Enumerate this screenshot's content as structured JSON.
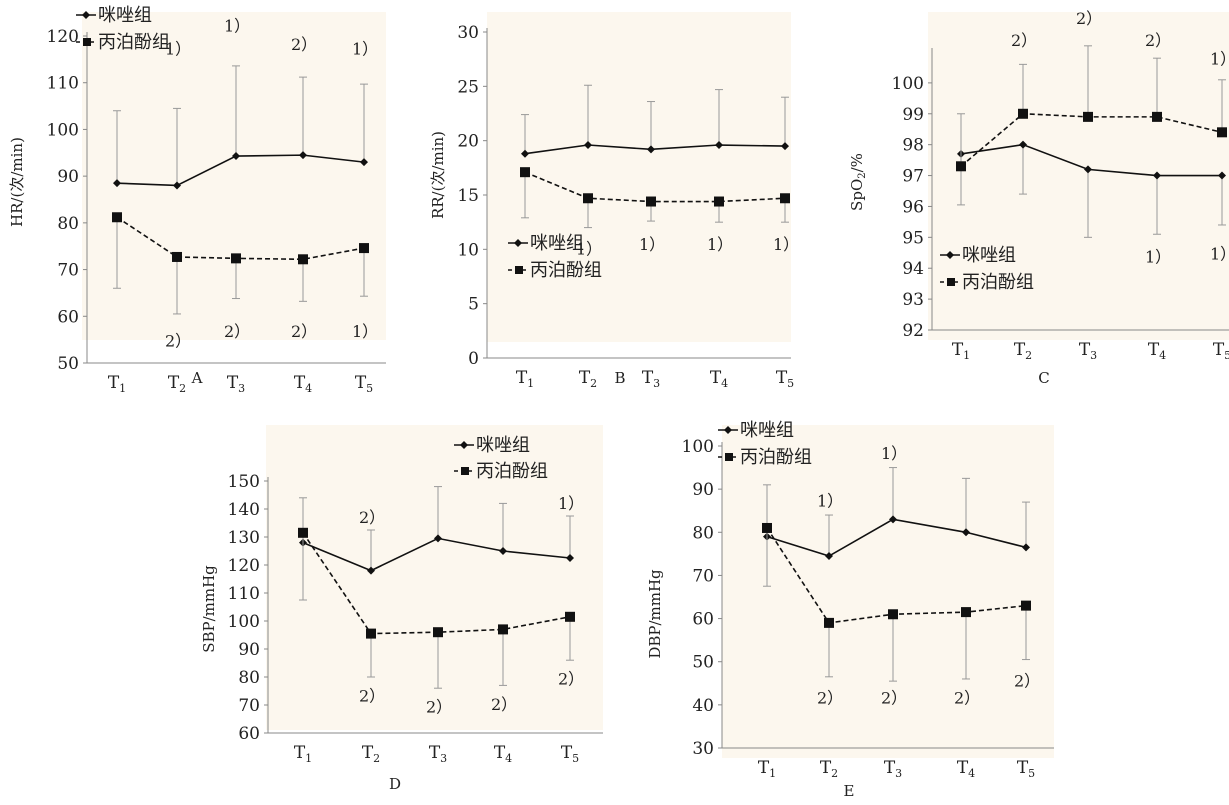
{
  "charts": [
    {
      "panel": "A",
      "type": "line",
      "ylabel": "HR/(次/min)",
      "ylim": [
        50,
        120
      ],
      "yticks": [
        50,
        60,
        70,
        80,
        90,
        100,
        110,
        120
      ],
      "categories": [
        "T1",
        "T2",
        "T3",
        "T4",
        "T5"
      ],
      "legend_position": "top-left",
      "series": [
        {
          "name": "咪唑组",
          "style": "solid-diamond",
          "values": [
            88.5,
            88.0,
            94.3,
            94.5,
            93.0
          ],
          "err_up": [
            15.5,
            16.5,
            19.3,
            16.7,
            16.7
          ],
          "err_down": [
            0,
            0,
            0,
            0,
            0
          ]
        },
        {
          "name": "丙泊酚组",
          "style": "dashed-square",
          "values": [
            81.2,
            72.7,
            72.4,
            72.2,
            74.6
          ],
          "err_up": [
            0,
            0,
            0,
            0,
            0
          ],
          "err_down": [
            15.2,
            12.2,
            8.6,
            9.0,
            10.3
          ]
        }
      ],
      "annotations": [
        {
          "text": "1）",
          "x": 1,
          "y": 116,
          "baseline": "top"
        },
        {
          "text": "1）",
          "x": 2,
          "y": 121,
          "baseline": "top"
        },
        {
          "text": "2）",
          "x": 3,
          "y": 117,
          "baseline": "top"
        },
        {
          "text": "1）",
          "x": 4,
          "y": 116,
          "baseline": "top"
        },
        {
          "text": "2）",
          "x": 1,
          "y": 57,
          "baseline": "bottom"
        },
        {
          "text": "2）",
          "x": 2,
          "y": 59,
          "baseline": "bottom"
        },
        {
          "text": "2）",
          "x": 3,
          "y": 59,
          "baseline": "bottom"
        },
        {
          "text": "1）",
          "x": 4,
          "y": 59,
          "baseline": "bottom"
        }
      ]
    },
    {
      "panel": "B",
      "type": "line",
      "ylabel": "RR/(次/min)",
      "ylim": [
        0,
        30
      ],
      "yticks": [
        0,
        5,
        10,
        15,
        20,
        25,
        30
      ],
      "categories": [
        "T1",
        "T2",
        "T3",
        "T4",
        "T5"
      ],
      "legend_position": "middle-left",
      "series": [
        {
          "name": "咪唑组",
          "style": "solid-diamond",
          "values": [
            18.8,
            19.6,
            19.2,
            19.6,
            19.5
          ],
          "err_up": [
            3.6,
            5.5,
            4.4,
            5.1,
            4.5
          ],
          "err_down": [
            0,
            0,
            0,
            0,
            0
          ]
        },
        {
          "name": "丙泊酚组",
          "style": "dashed-square",
          "values": [
            17.1,
            14.7,
            14.4,
            14.4,
            14.7
          ],
          "err_up": [
            0,
            0,
            0,
            0,
            0
          ],
          "err_down": [
            4.2,
            2.7,
            1.8,
            1.9,
            2.2
          ]
        }
      ],
      "annotations": [
        {
          "text": "1）",
          "x": 1,
          "y": 11.0,
          "baseline": "bottom"
        },
        {
          "text": "1）",
          "x": 2,
          "y": 11.4,
          "baseline": "bottom"
        },
        {
          "text": "1）",
          "x": 3,
          "y": 11.4,
          "baseline": "bottom"
        },
        {
          "text": "1）",
          "x": 4,
          "y": 11.4,
          "baseline": "bottom"
        }
      ]
    },
    {
      "panel": "C",
      "type": "line",
      "ylabel": "SpO2/%",
      "ylim": [
        92,
        101
      ],
      "yticks": [
        92,
        93,
        94,
        95,
        96,
        97,
        98,
        99,
        100
      ],
      "categories": [
        "T1",
        "T2",
        "T3",
        "T4",
        "T5"
      ],
      "legend_position": "bottom-left",
      "series": [
        {
          "name": "咪唑组",
          "style": "solid-diamond",
          "values": [
            97.7,
            98.0,
            97.2,
            97.0,
            97.0
          ],
          "err_up": [
            0,
            0,
            0,
            0,
            0
          ],
          "err_down": [
            1.65,
            1.6,
            2.2,
            1.9,
            1.6
          ]
        },
        {
          "name": "丙泊酚组",
          "style": "dashed-square",
          "values": [
            97.3,
            99.0,
            98.9,
            98.9,
            98.4
          ],
          "err_up": [
            1.7,
            1.6,
            2.3,
            1.9,
            1.7
          ],
          "err_down": [
            0,
            0,
            0,
            0,
            0
          ]
        }
      ],
      "annotations": [
        {
          "text": "2）",
          "x": 1,
          "y": 101.2,
          "baseline": "top"
        },
        {
          "text": "2）",
          "x": 2,
          "y": 101.9,
          "baseline": "top"
        },
        {
          "text": "2）",
          "x": 3,
          "y": 101.2,
          "baseline": "top"
        },
        {
          "text": "1）",
          "x": 4,
          "y": 100.6,
          "baseline": "top"
        },
        {
          "text": "1）",
          "x": 3,
          "y": 94.7,
          "baseline": "bottom"
        },
        {
          "text": "1）",
          "x": 4,
          "y": 94.8,
          "baseline": "bottom"
        }
      ]
    },
    {
      "panel": "D",
      "type": "line",
      "ylabel": "SBP/mmHg",
      "ylim": [
        60,
        150
      ],
      "yticks": [
        60,
        70,
        80,
        90,
        100,
        110,
        120,
        130,
        140,
        150
      ],
      "categories": [
        "T1",
        "T2",
        "T3",
        "T4",
        "T5"
      ],
      "legend_position": "top-right",
      "series": [
        {
          "name": "咪唑组",
          "style": "solid-diamond",
          "values": [
            128,
            118,
            129.5,
            125,
            122.5
          ],
          "err_up": [
            16,
            14.5,
            18.5,
            17,
            15
          ],
          "err_down": [
            0,
            0,
            0,
            0,
            0
          ]
        },
        {
          "name": "丙泊酚组",
          "style": "dashed-square",
          "values": [
            131.5,
            95.5,
            96,
            97,
            101.5
          ],
          "err_up": [
            0,
            0,
            0,
            0,
            0
          ],
          "err_down": [
            24,
            15.5,
            20,
            20,
            15.5
          ]
        }
      ],
      "annotations": [
        {
          "text": "2）",
          "x": 1,
          "y": 135,
          "baseline": "top"
        },
        {
          "text": "1）",
          "x": 4,
          "y": 140,
          "baseline": "top"
        },
        {
          "text": "2）",
          "x": 1,
          "y": 77,
          "baseline": "bottom"
        },
        {
          "text": "2）",
          "x": 2,
          "y": 73,
          "baseline": "bottom"
        },
        {
          "text": "2）",
          "x": 3,
          "y": 74,
          "baseline": "bottom"
        },
        {
          "text": "2）",
          "x": 4,
          "y": 83,
          "baseline": "bottom"
        }
      ]
    },
    {
      "panel": "E",
      "type": "line",
      "ylabel": "DBP/mmHg",
      "ylim": [
        30,
        100
      ],
      "yticks": [
        30,
        40,
        50,
        60,
        70,
        80,
        90,
        100
      ],
      "categories": [
        "T1",
        "T2",
        "T3",
        "T4",
        "T5"
      ],
      "legend_position": "top-left",
      "series": [
        {
          "name": "咪唑组",
          "style": "solid-diamond",
          "values": [
            79,
            74.5,
            83,
            80,
            76.5
          ],
          "err_up": [
            12,
            9.5,
            12,
            12.5,
            10.5
          ],
          "err_down": [
            0,
            0,
            0,
            0,
            0
          ]
        },
        {
          "name": "丙泊酚组",
          "style": "dashed-square",
          "values": [
            81,
            59,
            61,
            61.5,
            63
          ],
          "err_up": [
            0,
            0,
            0,
            0,
            0
          ],
          "err_down": [
            13.5,
            12.5,
            15.5,
            15.5,
            12.5
          ]
        }
      ],
      "annotations": [
        {
          "text": "1）",
          "x": 1,
          "y": 86,
          "baseline": "top"
        },
        {
          "text": "1）",
          "x": 2,
          "y": 97,
          "baseline": "top"
        },
        {
          "text": "2）",
          "x": 1,
          "y": 44,
          "baseline": "bottom"
        },
        {
          "text": "2）",
          "x": 2,
          "y": 44,
          "baseline": "bottom"
        },
        {
          "text": "2）",
          "x": 3,
          "y": 44,
          "baseline": "bottom"
        },
        {
          "text": "2）",
          "x": 4,
          "y": 48,
          "baseline": "bottom"
        }
      ]
    }
  ]
}
